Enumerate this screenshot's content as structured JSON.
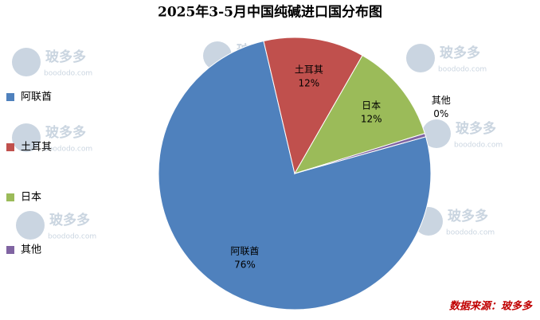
{
  "chart_data": {
    "type": "pie",
    "title": "2025年3-5月中国纯碱进口国分布图",
    "categories": [
      "阿联酋",
      "土耳其",
      "日本",
      "其他"
    ],
    "values": [
      76,
      12,
      12,
      0.4
    ],
    "value_labels": [
      "76%",
      "12%",
      "12%",
      "0%"
    ],
    "colors": [
      "#4f81bd",
      "#c0504d",
      "#9bbb59",
      "#8064a2"
    ],
    "legend": "left",
    "source": "数据来源：玻多多",
    "watermark": {
      "name": "玻多多",
      "url": "boododo.com"
    }
  }
}
